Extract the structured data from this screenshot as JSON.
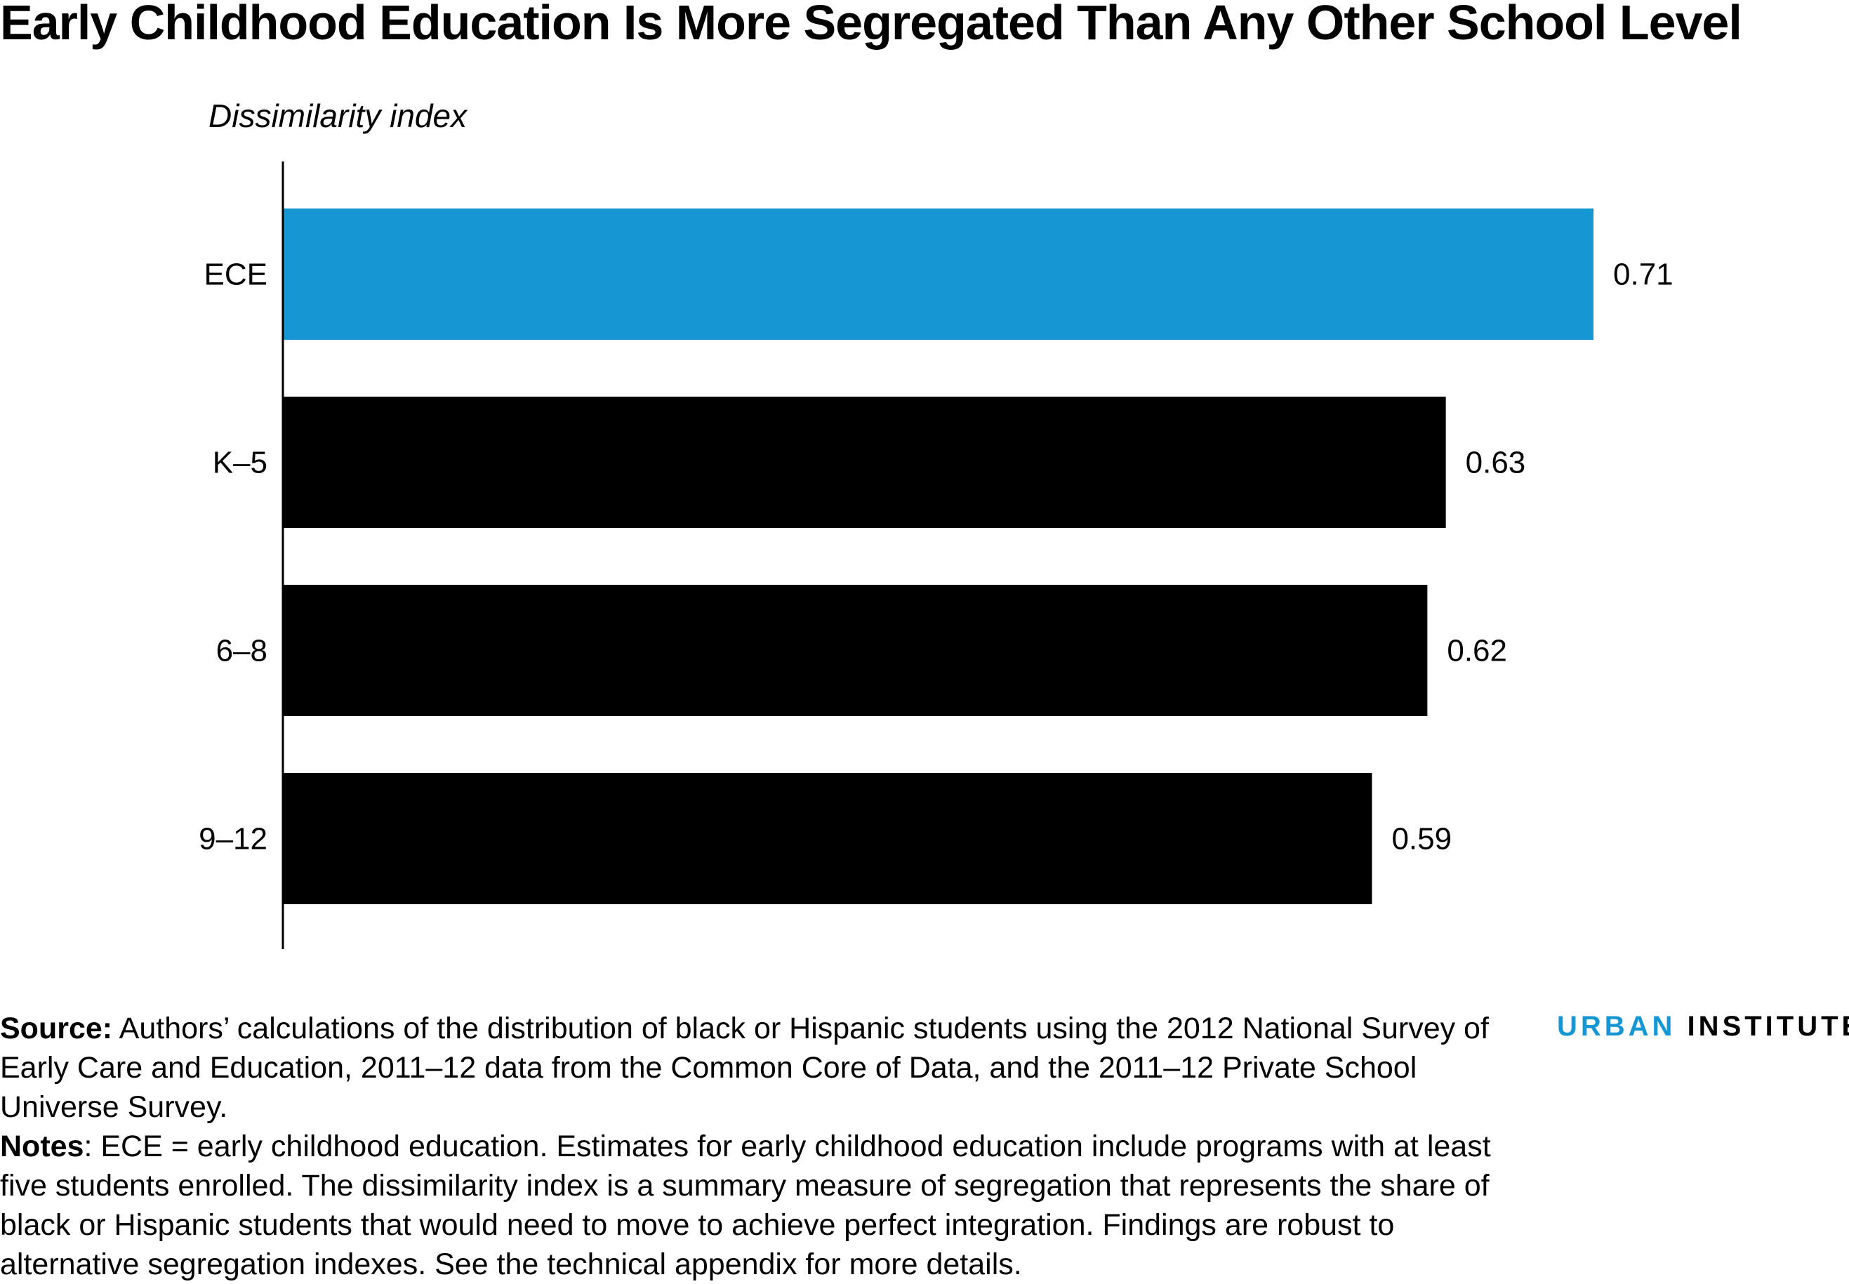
{
  "title": "Early Childhood Education Is More Segregated Than Any Other School Level",
  "chart_data": {
    "type": "bar",
    "orientation": "horizontal",
    "ylabel": "Dissimilarity index",
    "categories": [
      "ECE",
      "K–5",
      "6–8",
      "9–12"
    ],
    "values": [
      0.71,
      0.63,
      0.62,
      0.59
    ],
    "value_labels": [
      "0.71",
      "0.63",
      "0.62",
      "0.59"
    ],
    "colors": [
      "#1696d2",
      "#000000",
      "#000000",
      "#000000"
    ],
    "xlim": [
      0,
      0.71
    ],
    "grid": false
  },
  "footer": {
    "source_label": "Source:",
    "source_text": " Authors’ calculations of the distribution of black or Hispanic students using the 2012 National Survey of Early Care and Education, 2011–12 data from the Common Core of Data, and the 2011–12 Private School Universe Survey.",
    "notes_label": "Notes",
    "notes_text": ": ECE = early childhood education. Estimates for early childhood education include programs with at least five students enrolled. The dissimilarity index is a summary measure of segregation that represents the share of black or Hispanic students that would need to move to achieve perfect integration. Findings are robust to alternative segregation indexes. See the technical appendix for more details."
  },
  "logo": {
    "word1": "URBAN",
    "word2": "INSTITUTE",
    "color1": "#1696d2",
    "color2": "#000000"
  }
}
